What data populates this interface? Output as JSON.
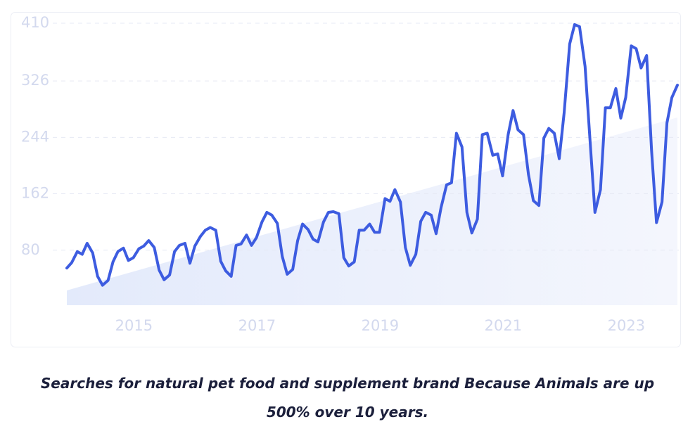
{
  "chart_data": {
    "type": "line",
    "caption": "Searches for natural pet food and supplement brand Because Animals are up 500% over 10 years.",
    "x": [
      2013.91,
      2013.99,
      2014.08,
      2014.16,
      2014.24,
      2014.33,
      2014.41,
      2014.49,
      2014.58,
      2014.66,
      2014.74,
      2014.83,
      2014.91,
      2014.99,
      2015.08,
      2015.16,
      2015.24,
      2015.33,
      2015.41,
      2015.49,
      2015.58,
      2015.66,
      2015.74,
      2015.83,
      2015.91,
      2015.99,
      2016.08,
      2016.16,
      2016.24,
      2016.33,
      2016.41,
      2016.49,
      2016.58,
      2016.66,
      2016.74,
      2016.83,
      2016.91,
      2016.99,
      2017.08,
      2017.16,
      2017.24,
      2017.33,
      2017.41,
      2017.49,
      2017.58,
      2017.66,
      2017.74,
      2017.83,
      2017.91,
      2017.99,
      2018.08,
      2018.16,
      2018.24,
      2018.33,
      2018.41,
      2018.49,
      2018.58,
      2018.66,
      2018.74,
      2018.83,
      2018.91,
      2018.99,
      2019.08,
      2019.16,
      2019.24,
      2019.33,
      2019.41,
      2019.49,
      2019.58,
      2019.66,
      2019.74,
      2019.83,
      2019.91,
      2019.99,
      2020.08,
      2020.16,
      2020.24,
      2020.33,
      2020.41,
      2020.49,
      2020.58,
      2020.66,
      2020.74,
      2020.83,
      2020.91,
      2020.99,
      2021.08,
      2021.16,
      2021.24,
      2021.33,
      2021.41,
      2021.49,
      2021.58,
      2021.66,
      2021.74,
      2021.83,
      2021.91,
      2021.99,
      2022.08,
      2022.16,
      2022.24,
      2022.33,
      2022.41,
      2022.49,
      2022.58,
      2022.66,
      2022.74,
      2022.83,
      2022.91,
      2022.99,
      2023.08,
      2023.16,
      2023.24,
      2023.33,
      2023.41,
      2023.49,
      2023.58,
      2023.66,
      2023.74,
      2023.83
    ],
    "series": [
      {
        "color": "#3d5ce0",
        "values": [
          54,
          62,
          78,
          74,
          90,
          76,
          42,
          29,
          36,
          63,
          78,
          83,
          65,
          69,
          82,
          86,
          94,
          84,
          51,
          37,
          44,
          78,
          87,
          90,
          61,
          86,
          100,
          109,
          113,
          109,
          64,
          50,
          42,
          87,
          89,
          102,
          87,
          98,
          121,
          135,
          131,
          119,
          71,
          45,
          52,
          94,
          118,
          110,
          96,
          92,
          121,
          135,
          136,
          133,
          69,
          57,
          63,
          109,
          109,
          118,
          106,
          106,
          155,
          151,
          168,
          150,
          84,
          58,
          74,
          122,
          135,
          131,
          104,
          142,
          175,
          178,
          250,
          230,
          135,
          105,
          125,
          248,
          250,
          218,
          220,
          188,
          248,
          283,
          255,
          248,
          190,
          152,
          145,
          243,
          257,
          250,
          213,
          280,
          380,
          408,
          405,
          347,
          240,
          135,
          168,
          287,
          287,
          315,
          272,
          302,
          377,
          373,
          345,
          363,
          225,
          120,
          150,
          265,
          302,
          320
        ]
      }
    ],
    "xlim": [
      2013.91,
      2023.83
    ],
    "xticks": [
      2015,
      2017,
      2019,
      2021,
      2023
    ],
    "ylim": [
      0,
      410
    ],
    "yticks": [
      80,
      162,
      244,
      326,
      410
    ],
    "grid": true
  }
}
